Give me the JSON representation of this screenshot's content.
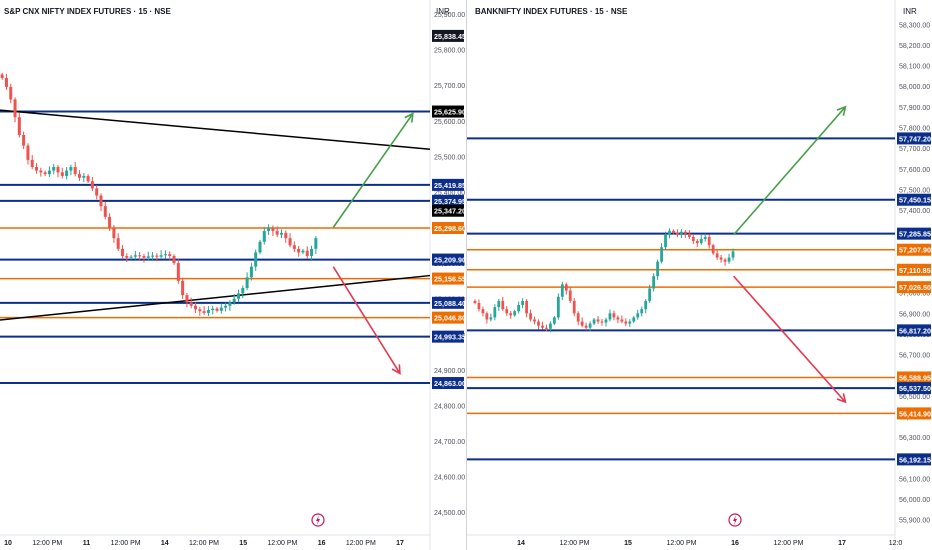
{
  "chart_data": [
    {
      "type": "candlestick",
      "title": "S&P CNX NIFTY INDEX FUTURES · 15 · NSE",
      "currency": "INR",
      "ylim": [
        24450,
        25900
      ],
      "y_ticks": [
        "24,500.00",
        "24,600.00",
        "24,700.00",
        "24,800.00",
        "24,900.00",
        "25,000.00",
        "25,100.00",
        "25,200.00",
        "25,300.00",
        "25,400.00",
        "25,500.00",
        "25,600.00",
        "25,700.00",
        "25,800.00",
        "25,900.00"
      ],
      "x_ticks": [
        "10",
        "12:00 PM",
        "11",
        "12:00 PM",
        "14",
        "12:00 PM",
        "15",
        "12:00 PM",
        "16",
        "12:00 PM",
        "17"
      ],
      "price_tags": [
        {
          "label": "25,838.45",
          "value": 25838.45,
          "kind": "dark"
        },
        {
          "label": "25,625.90",
          "value": 25625.9,
          "kind": "black"
        },
        {
          "label": "25,419.85",
          "value": 25419.85,
          "kind": "blue"
        },
        {
          "label": "25,374.95",
          "value": 25374.95,
          "kind": "blue"
        },
        {
          "label": "25,347.20",
          "value": 25347.2,
          "kind": "black"
        },
        {
          "label": "25,298.60",
          "value": 25298.6,
          "kind": "orange"
        },
        {
          "label": "25,209.90",
          "value": 25209.9,
          "kind": "blue"
        },
        {
          "label": "25,156.55",
          "value": 25156.55,
          "kind": "orange"
        },
        {
          "label": "25,088.40",
          "value": 25088.4,
          "kind": "blue"
        },
        {
          "label": "25,046.80",
          "value": 25046.8,
          "kind": "orange"
        },
        {
          "label": "24,993.35",
          "value": 24993.35,
          "kind": "blue"
        },
        {
          "label": "24,863.00",
          "value": 24863.0,
          "kind": "blue"
        }
      ],
      "levels_blue": [
        25625.9,
        25419.85,
        25374.95,
        25209.9,
        25088.4,
        24993.35,
        24863.0
      ],
      "levels_orange": [
        25298.6,
        25156.55,
        25046.8
      ],
      "trendlines": [
        {
          "from": [
            0,
            25630
          ],
          "to": [
            1,
            25520
          ]
        },
        {
          "from": [
            0,
            25040
          ],
          "to": [
            1,
            25165
          ]
        }
      ],
      "projection_up": {
        "from": [
          0.775,
          25300
        ],
        "to": [
          0.96,
          25620
        ]
      },
      "projection_down": {
        "from": [
          0.775,
          25190
        ],
        "to": [
          0.93,
          24890
        ]
      },
      "series": [
        25720,
        25695,
        25660,
        25610,
        25560,
        25530,
        25490,
        25470,
        25460,
        25455,
        25450,
        25460,
        25470,
        25455,
        25445,
        25460,
        25470,
        25450,
        25440,
        25445,
        25430,
        25410,
        25390,
        25360,
        25330,
        25300,
        25270,
        25240,
        25220,
        25215,
        25218,
        25222,
        25220,
        25215,
        25219,
        25221,
        25218,
        25222,
        25225,
        25220,
        25200,
        25150,
        25110,
        25090,
        25080,
        25070,
        25065,
        25060,
        25068,
        25072,
        25066,
        25075,
        25080,
        25090,
        25100,
        25115,
        25130,
        25160,
        25190,
        25230,
        25260,
        25290,
        25300,
        25290,
        25280,
        25285,
        25270,
        25250,
        25240,
        25230,
        25235,
        25220,
        25240,
        25270
      ]
    },
    {
      "type": "candlestick",
      "title": "BANKNIFTY INDEX FUTURES · 15 · NSE",
      "currency": "INR",
      "ylim": [
        55850,
        58350
      ],
      "y_ticks": [
        "55,900.00",
        "56,000.00",
        "56,100.00",
        "56,200.00",
        "56,300.00",
        "56,400.00",
        "56,500.00",
        "56,600.00",
        "56,700.00",
        "56,800.00",
        "56,900.00",
        "57,000.00",
        "57,100.00",
        "57,200.00",
        "57,300.00",
        "57,400.00",
        "57,500.00",
        "57,600.00",
        "57,700.00",
        "57,800.00",
        "57,900.00",
        "58,000.00",
        "58,100.00",
        "58,200.00",
        "58,300.00"
      ],
      "x_ticks": [
        "14",
        "12:00 PM",
        "15",
        "12:00 PM",
        "16",
        "12:00 PM",
        "17",
        "12:0"
      ],
      "price_tags": [
        {
          "label": "57,747.20",
          "value": 57747.2,
          "kind": "blue"
        },
        {
          "label": "57,450.15",
          "value": 57450.15,
          "kind": "blue"
        },
        {
          "label": "57,285.85",
          "value": 57285.85,
          "kind": "blue"
        },
        {
          "label": "57,207.90",
          "value": 57207.9,
          "kind": "orange"
        },
        {
          "label": "57,110.85",
          "value": 57110.85,
          "kind": "orange"
        },
        {
          "label": "57,026.50",
          "value": 57026.5,
          "kind": "orange"
        },
        {
          "label": "56,817.20",
          "value": 56817.2,
          "kind": "blue"
        },
        {
          "label": "56,588.95",
          "value": 56588.95,
          "kind": "orange"
        },
        {
          "label": "56,537.50",
          "value": 56537.5,
          "kind": "blue"
        },
        {
          "label": "56,414.90",
          "value": 56414.9,
          "kind": "orange"
        },
        {
          "label": "56,192.15",
          "value": 56192.15,
          "kind": "blue"
        }
      ],
      "levels_blue": [
        57747.2,
        57450.15,
        57285.85,
        56817.2,
        56537.5,
        56192.15
      ],
      "levels_orange": [
        57207.9,
        57110.85,
        57026.5,
        56588.95,
        56414.9
      ],
      "projection_up": {
        "from": [
          0.62,
          57280
        ],
        "to": [
          0.88,
          57900
        ]
      },
      "projection_down": {
        "from": [
          0.62,
          57080
        ],
        "to": [
          0.88,
          56470
        ]
      },
      "series": [
        56950,
        56920,
        56900,
        56870,
        56880,
        56930,
        56960,
        56920,
        56900,
        56890,
        56910,
        56940,
        56960,
        56900,
        56870,
        56860,
        56840,
        56830,
        56825,
        56850,
        56880,
        56980,
        57040,
        57010,
        56960,
        56900,
        56860,
        56840,
        56830,
        56850,
        56870,
        56860,
        56855,
        56870,
        56900,
        56880,
        56870,
        56860,
        56850,
        56860,
        56880,
        56900,
        56920,
        56960,
        57020,
        57080,
        57150,
        57220,
        57280,
        57300,
        57290,
        57280,
        57295,
        57285,
        57270,
        57250,
        57240,
        57260,
        57270,
        57230,
        57190,
        57170,
        57160,
        57150,
        57170,
        57200
      ]
    }
  ]
}
